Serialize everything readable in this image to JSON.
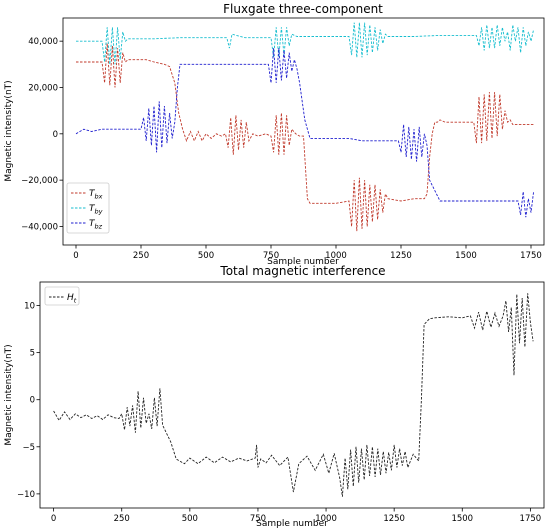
{
  "chart_data": [
    {
      "type": "line",
      "title": "Fluxgate three-component",
      "xlabel": "Sample number",
      "ylabel": "Magnetic intensity(nT)",
      "xlim": [
        -50,
        1800
      ],
      "ylim": [
        -48000,
        50000
      ],
      "xticks": [
        0,
        250,
        500,
        750,
        1000,
        1250,
        1500,
        1750
      ],
      "xtick_labels": [
        "0",
        "250",
        "500",
        "750",
        "1000",
        "1250",
        "1500",
        "1750"
      ],
      "yticks": [
        -40000,
        -20000,
        0,
        20000,
        40000
      ],
      "ytick_labels": [
        "−40,000",
        "−20,000",
        "0",
        "20,000",
        "40,000"
      ],
      "legend_position": "bottom-left",
      "series": [
        {
          "name": "T_bx",
          "label_main": "T",
          "label_sub": "bx",
          "color": "#c0392b",
          "x": [
            0,
            90,
            100,
            110,
            120,
            130,
            140,
            150,
            160,
            170,
            180,
            190,
            200,
            230,
            270,
            300,
            340,
            360,
            380,
            395,
            410,
            425,
            440,
            455,
            470,
            485,
            500,
            520,
            540,
            560,
            575,
            585,
            595,
            605,
            615,
            625,
            635,
            645,
            655,
            665,
            680,
            700,
            730,
            750,
            760,
            770,
            780,
            790,
            800,
            810,
            820,
            830,
            845,
            860,
            875,
            890,
            900,
            950,
            1000,
            1050,
            1060,
            1070,
            1080,
            1090,
            1100,
            1110,
            1120,
            1130,
            1140,
            1150,
            1160,
            1170,
            1180,
            1190,
            1200,
            1250,
            1300,
            1340,
            1350,
            1360,
            1370,
            1380,
            1390,
            1400,
            1420,
            1450,
            1500,
            1530,
            1540,
            1550,
            1560,
            1570,
            1580,
            1590,
            1600,
            1610,
            1620,
            1630,
            1640,
            1650,
            1660,
            1670,
            1680,
            1700,
            1730,
            1760
          ],
          "values": [
            31000,
            31000,
            31000,
            22000,
            39000,
            21000,
            38000,
            20000,
            37000,
            22000,
            35000,
            31000,
            32000,
            32000,
            32000,
            31000,
            30000,
            29000,
            22000,
            9000,
            2000,
            -3000,
            1000,
            -3000,
            1000,
            -3000,
            0,
            -2000,
            0,
            -1000,
            0,
            -6000,
            7000,
            -9000,
            8000,
            -7000,
            6000,
            -6000,
            5000,
            -3000,
            0,
            -1000,
            0,
            -1000,
            -8000,
            8000,
            -9000,
            9000,
            -9000,
            8000,
            -5000,
            2000,
            0,
            -1000,
            -1000,
            -28000,
            -30000,
            -30000,
            -30000,
            -29000,
            -40000,
            -20000,
            -42000,
            -19000,
            -41000,
            -20000,
            -40000,
            -22000,
            -38000,
            -22000,
            -37000,
            -24000,
            -34000,
            -26000,
            -28000,
            -29000,
            -28000,
            -28000,
            -26000,
            -10000,
            0,
            5000,
            5000,
            6000,
            5000,
            5000,
            5000,
            5000,
            -4000,
            16000,
            -4000,
            17000,
            -3000,
            18000,
            -2000,
            18000,
            -1000,
            17000,
            2000,
            10000,
            5000,
            6000,
            4000,
            4000,
            4000,
            4000
          ]
        },
        {
          "name": "T_by",
          "label_main": "T",
          "label_sub": "by",
          "color": "#17becf",
          "x": [
            0,
            90,
            100,
            110,
            120,
            130,
            140,
            150,
            160,
            170,
            180,
            190,
            200,
            250,
            300,
            400,
            500,
            580,
            590,
            600,
            650,
            700,
            740,
            750,
            760,
            770,
            780,
            790,
            800,
            810,
            820,
            830,
            850,
            900,
            1000,
            1050,
            1060,
            1070,
            1080,
            1090,
            1100,
            1110,
            1120,
            1130,
            1140,
            1150,
            1160,
            1170,
            1180,
            1190,
            1200,
            1300,
            1400,
            1500,
            1540,
            1550,
            1560,
            1570,
            1580,
            1590,
            1600,
            1610,
            1620,
            1630,
            1640,
            1650,
            1660,
            1670,
            1680,
            1690,
            1700,
            1710,
            1720,
            1730,
            1740,
            1750,
            1760
          ],
          "values": [
            40000,
            40000,
            40000,
            31000,
            46000,
            30000,
            46000,
            30000,
            46000,
            32000,
            44000,
            40000,
            41000,
            41000,
            41000,
            41500,
            41500,
            41500,
            37000,
            43000,
            41500,
            41500,
            41500,
            41500,
            33000,
            46000,
            33000,
            46000,
            34000,
            46000,
            38000,
            43000,
            42000,
            42000,
            42000,
            42000,
            34000,
            48000,
            33000,
            48000,
            33000,
            48000,
            34000,
            47000,
            35000,
            46000,
            36000,
            45000,
            39000,
            43000,
            42000,
            42000,
            42500,
            42500,
            42500,
            38000,
            46000,
            36000,
            47000,
            37000,
            46000,
            37000,
            47000,
            38000,
            46000,
            40000,
            44000,
            36000,
            47000,
            40000,
            46000,
            35000,
            46000,
            38000,
            44000,
            40000,
            45000
          ]
        },
        {
          "name": "T_bz",
          "label_main": "T",
          "label_sub": "bz",
          "color": "#1f1fcf",
          "x": [
            0,
            30,
            60,
            100,
            150,
            200,
            250,
            260,
            270,
            280,
            290,
            300,
            310,
            320,
            330,
            340,
            350,
            360,
            370,
            380,
            390,
            400,
            500,
            600,
            700,
            740,
            750,
            760,
            770,
            780,
            790,
            800,
            810,
            820,
            830,
            840,
            850,
            860,
            880,
            900,
            950,
            1000,
            1050,
            1100,
            1150,
            1200,
            1240,
            1250,
            1260,
            1270,
            1280,
            1290,
            1300,
            1310,
            1320,
            1330,
            1340,
            1350,
            1360,
            1400,
            1500,
            1600,
            1700,
            1710,
            1720,
            1730,
            1740,
            1750,
            1760
          ],
          "values": [
            0,
            2000,
            1000,
            2000,
            2000,
            2000,
            2000,
            7000,
            -3000,
            11000,
            -5000,
            12000,
            -8000,
            14000,
            -6000,
            12000,
            -4000,
            9000,
            -2000,
            5000,
            20000,
            30000,
            30000,
            30000,
            30000,
            30000,
            22000,
            37000,
            22000,
            37000,
            23000,
            36000,
            24000,
            35000,
            27000,
            32000,
            28000,
            22000,
            6000,
            -2000,
            -2000,
            -2000,
            -2000,
            -3000,
            -3000,
            -3000,
            -3000,
            -8000,
            4000,
            -10000,
            3000,
            -11000,
            2000,
            -12000,
            3000,
            -10000,
            0,
            -5000,
            -20000,
            -29000,
            -29000,
            -29000,
            -29000,
            -35000,
            -25000,
            -36000,
            -28000,
            -34000,
            -25000
          ]
        }
      ]
    },
    {
      "type": "line",
      "title": "Total magnetic interference",
      "xlabel": "Sample number",
      "ylabel": "Magnetic intensity(nT)",
      "xlim": [
        -50,
        1800
      ],
      "ylim": [
        -11.5,
        12.5
      ],
      "xticks": [
        0,
        250,
        500,
        750,
        1000,
        1250,
        1500,
        1750
      ],
      "xtick_labels": [
        "0",
        "250",
        "500",
        "750",
        "1000",
        "1250",
        "1500",
        "1750"
      ],
      "yticks": [
        -10,
        -5,
        0,
        5,
        10
      ],
      "ytick_labels": [
        "−10",
        "−5",
        "0",
        "5",
        "10"
      ],
      "legend_position": "top-left",
      "series": [
        {
          "name": "H_t",
          "label_main": "H",
          "label_sub": "t",
          "color": "#222222",
          "x": [
            0,
            20,
            40,
            60,
            80,
            100,
            120,
            140,
            160,
            180,
            200,
            220,
            240,
            250,
            260,
            270,
            280,
            290,
            300,
            310,
            320,
            330,
            340,
            350,
            360,
            370,
            380,
            390,
            400,
            430,
            450,
            480,
            500,
            530,
            560,
            590,
            620,
            650,
            680,
            710,
            740,
            745,
            750,
            760,
            780,
            800,
            830,
            860,
            880,
            900,
            930,
            960,
            990,
            1010,
            1030,
            1050,
            1060,
            1070,
            1080,
            1090,
            1100,
            1110,
            1120,
            1130,
            1140,
            1150,
            1160,
            1170,
            1180,
            1190,
            1200,
            1210,
            1220,
            1230,
            1240,
            1250,
            1260,
            1270,
            1280,
            1290,
            1300,
            1320,
            1340,
            1350,
            1360,
            1380,
            1400,
            1450,
            1500,
            1530,
            1545,
            1560,
            1575,
            1590,
            1605,
            1620,
            1635,
            1650,
            1660,
            1670,
            1680,
            1690,
            1700,
            1710,
            1720,
            1730,
            1740,
            1750,
            1760
          ],
          "values": [
            -1.2,
            -2.2,
            -1.3,
            -2.1,
            -1.5,
            -1.9,
            -1.6,
            -2.0,
            -1.7,
            -2.1,
            -1.6,
            -1.9,
            -2.0,
            -1.5,
            -3.2,
            -0.8,
            -2.8,
            -0.6,
            -3.5,
            0.9,
            -3.0,
            0.2,
            -2.5,
            -1.5,
            -3.1,
            0.2,
            -2.8,
            1.2,
            -2.7,
            -4.5,
            -6.3,
            -6.8,
            -6.2,
            -6.8,
            -6.1,
            -6.7,
            -6.1,
            -6.6,
            -6.2,
            -6.5,
            -6.2,
            -4.8,
            -7.2,
            -6.3,
            -6.7,
            -5.9,
            -7.0,
            -6.1,
            -9.8,
            -6.8,
            -6.0,
            -7.5,
            -5.8,
            -7.8,
            -5.7,
            -8.3,
            -10.3,
            -6.2,
            -9.5,
            -5.3,
            -9.2,
            -5.0,
            -8.8,
            -5.2,
            -8.5,
            -4.8,
            -8.1,
            -5.0,
            -8.2,
            -5.2,
            -8.0,
            -5.5,
            -7.8,
            -5.6,
            -7.5,
            -4.8,
            -7.2,
            -5.2,
            -7.0,
            -5.5,
            -7.2,
            -5.8,
            -6.5,
            0.0,
            8.0,
            8.6,
            8.7,
            8.8,
            8.7,
            8.9,
            7.6,
            9.3,
            7.4,
            9.4,
            7.7,
            9.2,
            7.8,
            8.9,
            10.5,
            7.2,
            9.8,
            2.6,
            11.2,
            6.0,
            10.8,
            5.6,
            11.3,
            8.2,
            6.2
          ]
        }
      ]
    }
  ]
}
